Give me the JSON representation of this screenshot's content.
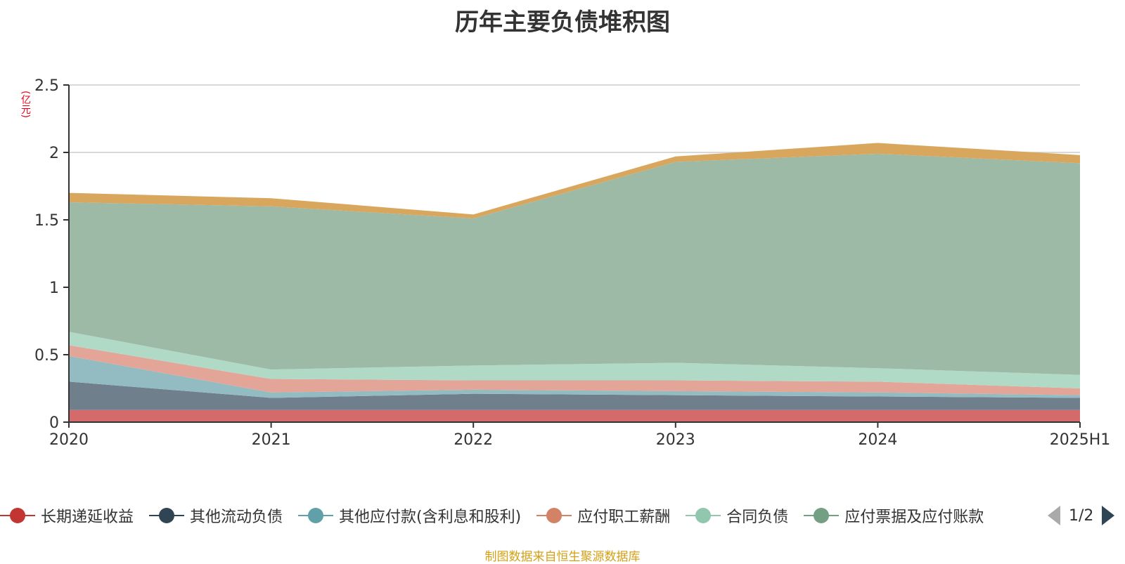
{
  "chart_data": {
    "type": "area",
    "stacked": true,
    "title": "历年主要负债堆积图",
    "ylabel": "(亿元)",
    "xlabel": "",
    "categories": [
      "2020",
      "2021",
      "2022",
      "2023",
      "2024",
      "2025H1"
    ],
    "ylim": [
      0,
      2.5
    ],
    "yticks": [
      "0",
      "0.5",
      "1",
      "1.5",
      "2",
      "2.5"
    ],
    "grid": true,
    "legend_position": "bottom",
    "series": [
      {
        "name": "长期递延收益",
        "color": "#d46b6a",
        "legend_color": "#c23531",
        "values": [
          0.09,
          0.09,
          0.09,
          0.09,
          0.09,
          0.09
        ]
      },
      {
        "name": "其他流动负债",
        "color": "#6f7f8c",
        "legend_color": "#2f4554",
        "values": [
          0.21,
          0.09,
          0.12,
          0.11,
          0.1,
          0.09
        ]
      },
      {
        "name": "其他应付款(含利息和股利)",
        "color": "#92bcc2",
        "legend_color": "#61a0a8",
        "values": [
          0.19,
          0.04,
          0.03,
          0.03,
          0.03,
          0.02
        ]
      },
      {
        "name": "应付职工薪酬",
        "color": "#e3a597",
        "legend_color": "#d48265",
        "values": [
          0.08,
          0.1,
          0.07,
          0.08,
          0.08,
          0.05
        ]
      },
      {
        "name": "合同负债",
        "color": "#b0d9c6",
        "legend_color": "#91c7ae",
        "values": [
          0.1,
          0.07,
          0.11,
          0.13,
          0.1,
          0.1
        ]
      },
      {
        "name": "应付票据及应付账款",
        "color": "#9dbaa6",
        "legend_color": "#749f83",
        "values": [
          0.96,
          1.21,
          1.09,
          1.49,
          1.59,
          1.57
        ]
      },
      {
        "name": "",
        "color": "#d9a65e",
        "legend_color": "#ca8622",
        "values": [
          0.07,
          0.06,
          0.03,
          0.04,
          0.08,
          0.06
        ]
      }
    ]
  },
  "legend": {
    "page_text": "1/2"
  },
  "source_text": "制图数据来自恒生聚源数据库"
}
